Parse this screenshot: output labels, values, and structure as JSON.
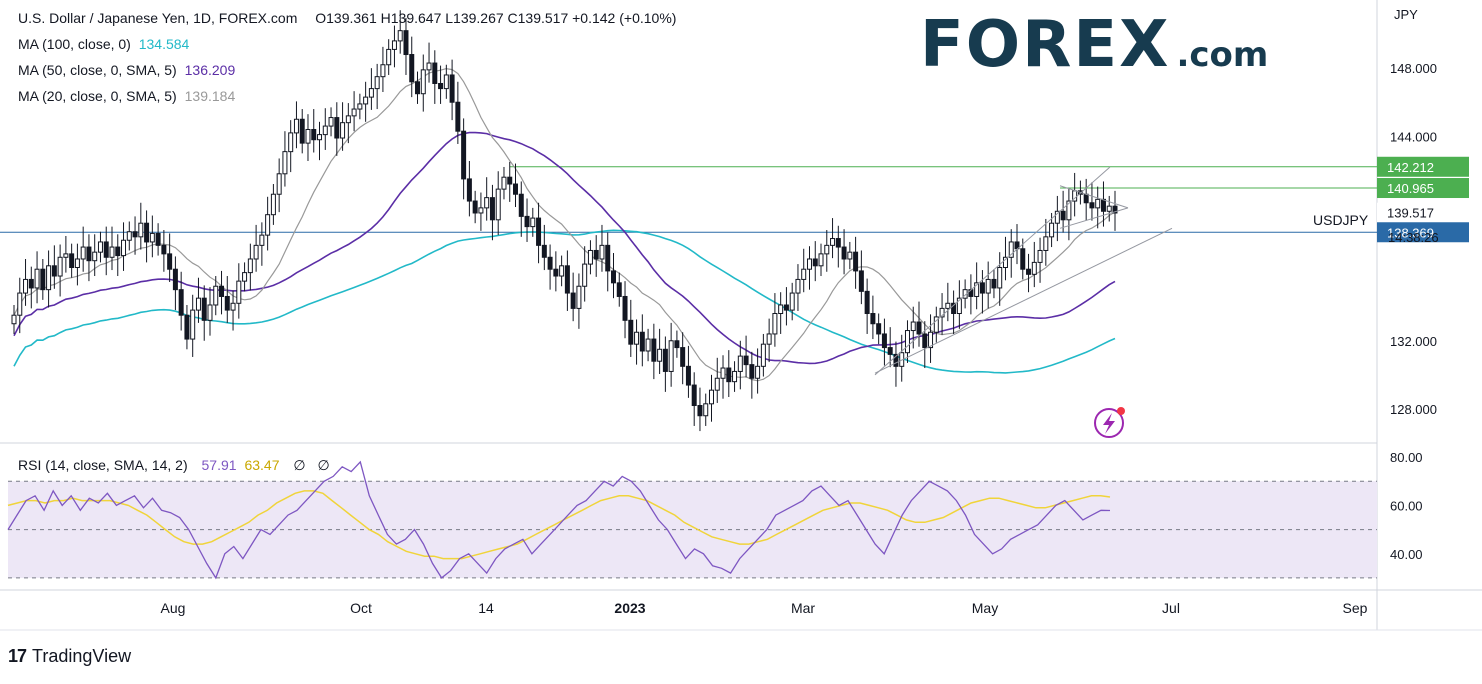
{
  "header": {
    "symbol": "U.S. Dollar / Japanese Yen, 1D, FOREX.com",
    "ohlc": "O139.361  H139.647  L139.267  C139.517  +0.142 (+0.10%)"
  },
  "indicators": [
    {
      "label": "MA (100, close, 0)",
      "value": "134.584",
      "color": "#22b9c8"
    },
    {
      "label": "MA (50, close, 0, SMA, 5)",
      "value": "136.209",
      "color": "#5b2ea6"
    },
    {
      "label": "MA (20, close, 0, SMA, 5)",
      "value": "139.184",
      "color": "#999999"
    }
  ],
  "rsi_legend": {
    "label": "RSI (14, close, SMA, 14, 2)",
    "value1": "57.91",
    "value2": "63.47",
    "extra1": "∅",
    "extra2": "∅"
  },
  "logo": {
    "main": "FOREX",
    "suffix": ".com"
  },
  "footer": {
    "brand": "TradingView",
    "mark": "17"
  },
  "currency": "JPY",
  "symbol_label": "USDJPY",
  "countdown": "14:38:26",
  "colors": {
    "green": "#4caf50",
    "blue_line": "#2a6aa7",
    "ma100": "#22b9c8",
    "ma50": "#5b2ea6",
    "ma20": "#999999",
    "rsi": "#7e57c2",
    "rsi_ma": "#f0d43a",
    "rsi_band": "#ede7f6"
  },
  "chart_data": [
    {
      "type": "candlestick",
      "title": "U.S. Dollar / Japanese Yen, 1D, FOREX.com",
      "ylim": [
        126,
        152
      ],
      "y_ticks": [
        "148.000",
        "144.000",
        "132.000",
        "128.000"
      ],
      "x_ticks": [
        "Aug",
        "Oct",
        "14",
        "2023",
        "Mar",
        "May",
        "Jul",
        "Sep"
      ],
      "price_tags": [
        {
          "label": "142.212",
          "value": 142.212,
          "bg": "#4caf50",
          "fg": "#ffffff"
        },
        {
          "label": "140.965",
          "value": 140.965,
          "bg": "#4caf50",
          "fg": "#ffffff"
        },
        {
          "label": "139.517",
          "value": 139.517,
          "bg": "#ffffff",
          "fg": "#131722"
        },
        {
          "label": "138.369",
          "value": 138.369,
          "bg": "#2a6aa7",
          "fg": "#ffffff"
        }
      ],
      "close_series": [
        133.5,
        134.8,
        135.6,
        135.1,
        136.2,
        135.0,
        136.4,
        135.8,
        136.9,
        137.1,
        136.3,
        136.8,
        137.5,
        136.7,
        137.2,
        137.8,
        136.9,
        137.5,
        137.0,
        137.9,
        138.4,
        138.1,
        138.9,
        137.8,
        138.3,
        137.6,
        137.1,
        136.2,
        135.0,
        133.5,
        132.1,
        133.8,
        134.5,
        133.2,
        134.1,
        135.2,
        134.6,
        133.8,
        134.2,
        135.5,
        136.0,
        136.8,
        137.6,
        138.2,
        139.4,
        140.6,
        141.8,
        143.1,
        144.2,
        145.0,
        143.6,
        144.4,
        143.8,
        144.1,
        144.6,
        145.1,
        143.9,
        144.8,
        145.2,
        145.6,
        145.9,
        146.3,
        146.8,
        147.5,
        148.2,
        149.1,
        149.6,
        150.2,
        148.8,
        147.2,
        146.5,
        147.9,
        148.3,
        147.1,
        146.8,
        147.6,
        146.0,
        144.3,
        141.5,
        140.2,
        139.5,
        139.8,
        140.4,
        139.1,
        140.9,
        141.6,
        141.2,
        140.6,
        139.3,
        138.7,
        139.2,
        137.6,
        136.9,
        136.2,
        135.8,
        136.4,
        134.8,
        133.9,
        135.2,
        136.5,
        137.3,
        136.8,
        137.6,
        136.1,
        135.4,
        134.6,
        133.2,
        131.8,
        132.5,
        131.4,
        132.1,
        130.8,
        131.5,
        130.2,
        132.0,
        131.6,
        130.5,
        129.4,
        128.2,
        127.6,
        128.3,
        129.1,
        129.8,
        130.4,
        129.6,
        130.2,
        131.1,
        130.6,
        129.8,
        130.5,
        131.8,
        132.4,
        133.6,
        134.1,
        133.8,
        134.8,
        135.6,
        136.2,
        136.8,
        136.4,
        137.1,
        137.6,
        138.0,
        137.5,
        136.8,
        137.2,
        136.1,
        134.9,
        133.6,
        133.0,
        132.4,
        131.6,
        131.2,
        130.5,
        131.3,
        132.6,
        133.1,
        132.4,
        131.6,
        132.5,
        133.4,
        133.9,
        134.2,
        133.6,
        134.5,
        135.0,
        134.6,
        135.4,
        134.8,
        135.6,
        135.1,
        136.3,
        136.9,
        137.8,
        137.4,
        136.2,
        135.9,
        136.6,
        137.3,
        138.1,
        138.9,
        139.6,
        139.1,
        140.2,
        140.8,
        140.6,
        140.1,
        139.8,
        140.3,
        139.6,
        139.9,
        139.5
      ]
    },
    {
      "type": "line",
      "title": "RSI (14, close, SMA, 14, 2)",
      "ylim": [
        25,
        85
      ],
      "y_ticks": [
        "80.00",
        "60.00",
        "40.00"
      ],
      "bands": [
        70,
        50,
        30
      ],
      "series": [
        {
          "name": "57.91",
          "values": [
            50,
            56,
            62,
            64,
            58,
            66,
            60,
            64,
            58,
            63,
            61,
            65,
            60,
            62,
            64,
            59,
            63,
            58,
            57,
            55,
            50,
            43,
            36,
            30,
            40,
            43,
            38,
            44,
            50,
            48,
            52,
            56,
            58,
            62,
            66,
            70,
            72,
            76,
            74,
            78,
            64,
            56,
            48,
            44,
            46,
            50,
            44,
            36,
            30,
            33,
            38,
            40,
            36,
            32,
            38,
            42,
            44,
            46,
            40,
            44,
            48,
            52,
            56,
            60,
            62,
            66,
            70,
            68,
            72,
            70,
            66,
            60,
            54,
            50,
            44,
            38,
            42,
            40,
            35,
            34,
            32,
            38,
            42,
            46,
            50,
            56,
            58,
            60,
            62,
            66,
            68,
            64,
            60,
            62,
            56,
            50,
            44,
            40,
            48,
            56,
            62,
            66,
            70,
            68,
            66,
            62,
            56,
            48,
            44,
            40,
            42,
            46,
            48,
            50,
            52,
            56,
            60,
            62,
            58,
            54,
            56,
            58,
            57.91
          ]
        },
        {
          "name": "63.47",
          "values": [
            60,
            61,
            62,
            62,
            61,
            62,
            62,
            63,
            62,
            62,
            62,
            62,
            61,
            60,
            58,
            56,
            53,
            50,
            47,
            45,
            44,
            44,
            45,
            47,
            49,
            51,
            53,
            56,
            58,
            61,
            63,
            65,
            66,
            66,
            65,
            62,
            59,
            56,
            53,
            50,
            48,
            45,
            43,
            41,
            40,
            39,
            39,
            38,
            38,
            38,
            39,
            40,
            41,
            42,
            43,
            44,
            46,
            48,
            50,
            52,
            54,
            56,
            58,
            60,
            62,
            63,
            64,
            64,
            63,
            62,
            60,
            58,
            56,
            53,
            51,
            49,
            47,
            46,
            45,
            44,
            44,
            45,
            46,
            48,
            50,
            52,
            54,
            56,
            58,
            59,
            60,
            61,
            61,
            60,
            59,
            58,
            56,
            54,
            53,
            53,
            54,
            55,
            57,
            59,
            61,
            62,
            63,
            63,
            62,
            61,
            60,
            59,
            59,
            60,
            61,
            62,
            63,
            64,
            64,
            63.47
          ]
        }
      ]
    }
  ]
}
